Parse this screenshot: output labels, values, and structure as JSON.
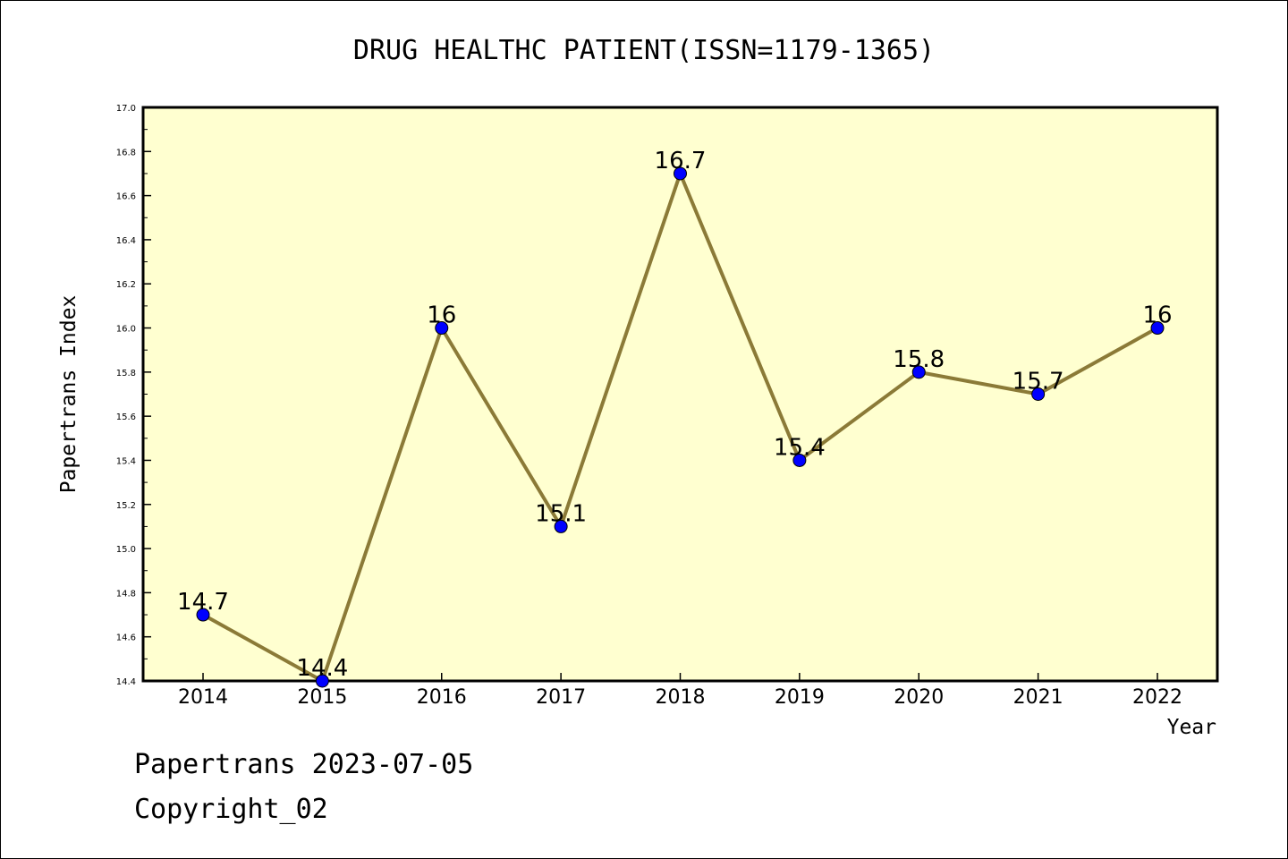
{
  "chart_data": {
    "type": "line",
    "title": "DRUG HEALTHC PATIENT(ISSN=1179-1365)",
    "xlabel": "Year",
    "ylabel": "Papertrans Index",
    "x": [
      "2014",
      "2015",
      "2016",
      "2017",
      "2018",
      "2019",
      "2020",
      "2021",
      "2022"
    ],
    "series": [
      {
        "values": [
          14.7,
          14.4,
          16,
          15.1,
          16.7,
          15.4,
          15.8,
          15.7,
          16
        ],
        "labels": [
          "14.7",
          "14.4",
          "16",
          "15.1",
          "16.7",
          "15.4",
          "15.8",
          "15.7",
          "16"
        ]
      }
    ],
    "ylim": [
      14.4,
      17.0
    ],
    "yticks": [
      "14.4",
      "14.6",
      "14.8",
      "15.0",
      "15.2",
      "15.4",
      "15.6",
      "15.8",
      "16.0",
      "16.2",
      "16.4",
      "16.6",
      "16.8",
      "17.0"
    ],
    "grid": false,
    "colors": {
      "plot_background": "#ffffd0",
      "line": "#8b7a37",
      "marker": "#0000ff"
    }
  },
  "footer": {
    "line1": "Papertrans 2023-07-05",
    "line2": "Copyright_02"
  }
}
